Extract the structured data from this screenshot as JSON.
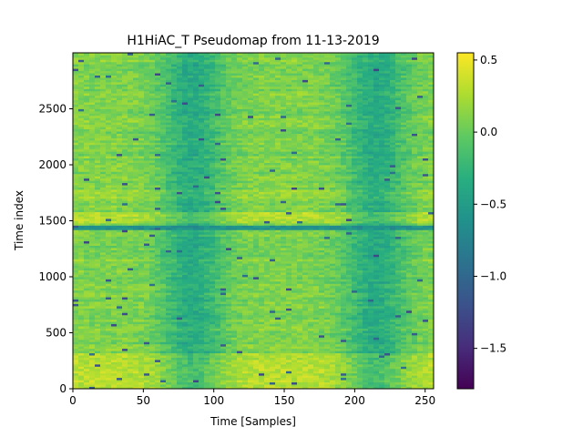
{
  "chart_data": {
    "type": "heatmap",
    "title": "H1HiAC_T Pseudomap from 11-13-2019",
    "xlabel": "Time [Samples]",
    "ylabel": "Time index",
    "xlim": [
      0,
      256
    ],
    "ylim": [
      0,
      3000
    ],
    "x_ticks": [
      0,
      50,
      100,
      150,
      200,
      250
    ],
    "y_ticks": [
      0,
      500,
      1000,
      1500,
      2000,
      2500
    ],
    "colormap": "viridis",
    "colorbar": {
      "range": [
        -1.78,
        0.55
      ],
      "ticks": [
        0.5,
        0.0,
        -0.5,
        -1.0,
        -1.5
      ],
      "tick_labels": [
        "0.5",
        "0.0",
        "−0.5",
        "−1.0",
        "−1.5"
      ]
    },
    "pattern": {
      "baseline_value": 0.1,
      "column_trough_centers": [
        85,
        215
      ],
      "column_trough_depth": -0.45,
      "bright_bands": [
        {
          "y_range": [
            0,
            330
          ],
          "value": 0.3
        },
        {
          "y_range": [
            1480,
            1580
          ],
          "value": 0.3
        },
        {
          "y_range": [
            1700,
            1780
          ],
          "value": 0.2
        }
      ],
      "dark_bands": [
        {
          "y_range": [
            1420,
            1470
          ],
          "value": -0.6
        }
      ],
      "noise_amplitude": 0.12
    }
  }
}
